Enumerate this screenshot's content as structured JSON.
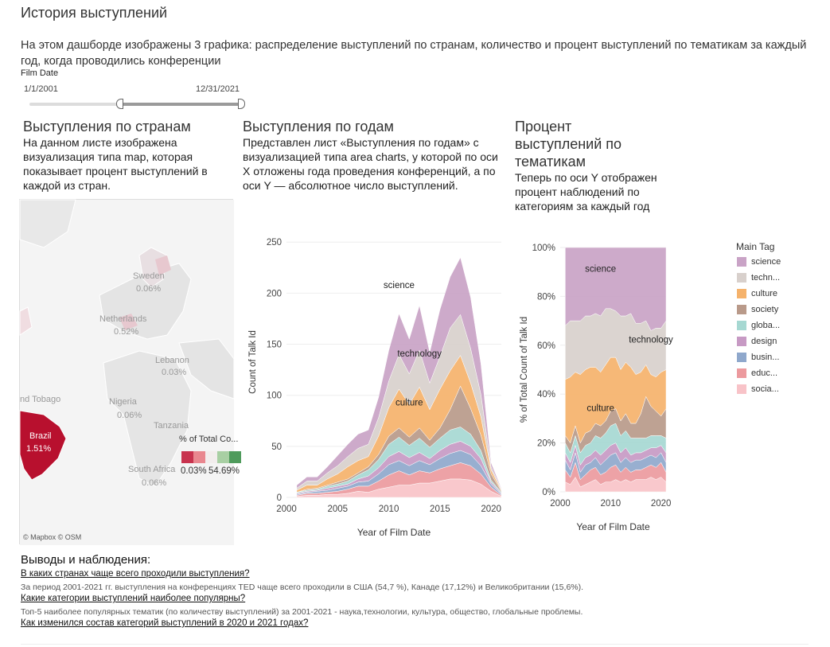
{
  "page": {
    "title": "История выступлений",
    "intro": "На этом дашборде изображены 3 графика: распределение выступлений по странам,  количество и процент выступлений по тематикам за каждый год, когда проводились конференции"
  },
  "filter": {
    "label": "Film Date",
    "min_label": "1/1/2001",
    "max_label": "12/31/2021"
  },
  "map_panel": {
    "title": "Выступления по странам",
    "description": "На данном листе изображена визуализация типа map, которая показывает процент выступлений в каждой из стран.",
    "labels": [
      {
        "name": "Sweden",
        "value": "0.06%"
      },
      {
        "name": "Netherlands",
        "value": "0.52%"
      },
      {
        "name": "Lebanon",
        "value": "0.03%"
      },
      {
        "name": "nd Tobago",
        "value": ""
      },
      {
        "name": "Nigeria",
        "value": "0.06%"
      },
      {
        "name": "Tanzania",
        "value": ""
      },
      {
        "name": "Brazil",
        "value": "1.51%"
      },
      {
        "name": "South Africa",
        "value": "0.06%"
      }
    ],
    "legend_title": "% of Total Co...",
    "legend_min": "0.03%",
    "legend_max": "54.69%",
    "legend_colors": [
      "#c8334e",
      "#e9878f",
      "#f2eded",
      "#a8cfa3",
      "#4f9b5c"
    ],
    "attribution": "© Mapbox  © OSM"
  },
  "years_panel": {
    "title": "Выступления по годам",
    "description": "Представлен лист «Выступления по годам» с визуализацией типа area charts, у которой по оси X отложены года проведения конференций, а по оси Y — абсолютное число выступлений."
  },
  "percent_panel": {
    "title": "Процент выступлений по тематикам",
    "description": "Теперь по оси Y отображен процент наблюдений по категориям за каждый год"
  },
  "legend": {
    "title": "Main Tag",
    "items": [
      {
        "label": "science",
        "color": "#c9a3c6"
      },
      {
        "label": "techn...",
        "color": "#d8d0cc"
      },
      {
        "label": "culture",
        "color": "#f5b26b"
      },
      {
        "label": "society",
        "color": "#b99a8a"
      },
      {
        "label": "globa...",
        "color": "#a6d8d2"
      },
      {
        "label": "design",
        "color": "#c79ac4"
      },
      {
        "label": "busin...",
        "color": "#8fa8cc"
      },
      {
        "label": "educ...",
        "color": "#ec9a9e"
      },
      {
        "label": "socia...",
        "color": "#f8c3c8"
      }
    ]
  },
  "chart_data": [
    {
      "type": "area",
      "stacked": true,
      "xlabel": "Year of Film Date",
      "ylabel": "Count of Talk Id",
      "xlim": [
        2000,
        2021
      ],
      "ylim": [
        0,
        265
      ],
      "xticks": [
        2000,
        2005,
        2010,
        2015,
        2020
      ],
      "yticks": [
        0,
        50,
        100,
        150,
        200,
        250
      ],
      "x": [
        2001,
        2002,
        2003,
        2004,
        2005,
        2006,
        2007,
        2008,
        2009,
        2010,
        2011,
        2012,
        2013,
        2014,
        2015,
        2016,
        2017,
        2018,
        2019,
        2020,
        2021
      ],
      "series": [
        {
          "name": "socia...",
          "values": [
            1,
            2,
            2,
            3,
            3,
            4,
            6,
            5,
            8,
            10,
            12,
            12,
            14,
            14,
            16,
            18,
            18,
            17,
            13,
            6,
            1
          ]
        },
        {
          "name": "educ...",
          "values": [
            1,
            2,
            2,
            2,
            3,
            4,
            5,
            6,
            8,
            12,
            14,
            10,
            12,
            10,
            12,
            13,
            16,
            14,
            10,
            4,
            1
          ]
        },
        {
          "name": "busin...",
          "values": [
            1,
            1,
            2,
            2,
            3,
            3,
            4,
            5,
            7,
            10,
            10,
            9,
            10,
            8,
            10,
            12,
            12,
            11,
            8,
            3,
            1
          ]
        },
        {
          "name": "design",
          "values": [
            1,
            1,
            1,
            2,
            2,
            2,
            3,
            5,
            6,
            8,
            9,
            8,
            8,
            6,
            8,
            9,
            9,
            8,
            7,
            2,
            1
          ]
        },
        {
          "name": "globa...",
          "values": [
            1,
            1,
            1,
            2,
            2,
            3,
            4,
            6,
            8,
            12,
            14,
            12,
            14,
            11,
            12,
            14,
            14,
            12,
            8,
            2,
            1
          ]
        },
        {
          "name": "society",
          "values": [
            0,
            1,
            1,
            1,
            2,
            2,
            2,
            3,
            5,
            8,
            9,
            8,
            10,
            7,
            10,
            20,
            40,
            25,
            15,
            6,
            1
          ]
        },
        {
          "name": "culture",
          "values": [
            2,
            4,
            3,
            6,
            8,
            12,
            12,
            10,
            18,
            28,
            38,
            32,
            40,
            30,
            38,
            38,
            30,
            25,
            18,
            4,
            1
          ]
        },
        {
          "name": "techn...",
          "values": [
            2,
            4,
            4,
            6,
            8,
            10,
            12,
            12,
            18,
            26,
            34,
            30,
            36,
            26,
            32,
            42,
            40,
            34,
            22,
            3,
            1
          ]
        },
        {
          "name": "science",
          "values": [
            3,
            4,
            4,
            6,
            10,
            12,
            14,
            14,
            20,
            30,
            40,
            34,
            44,
            30,
            46,
            50,
            56,
            50,
            30,
            4,
            1
          ]
        }
      ],
      "annotations": [
        {
          "text": "science",
          "x": 2011,
          "y": 205
        },
        {
          "text": "technology",
          "x": 2013,
          "y": 138
        },
        {
          "text": "culture",
          "x": 2012,
          "y": 90
        }
      ]
    },
    {
      "type": "area",
      "stacked": true,
      "normalized": true,
      "xlabel": "Year of Film Date",
      "ylabel": "% of Total Count of Talk Id",
      "xlim": [
        2000,
        2021
      ],
      "ylim": [
        0,
        100
      ],
      "xticks": [
        2000,
        2010,
        2020
      ],
      "yticks": [
        "0%",
        "20%",
        "40%",
        "60%",
        "80%",
        "100%"
      ],
      "x": [
        2001,
        2002,
        2003,
        2004,
        2005,
        2006,
        2007,
        2008,
        2009,
        2010,
        2011,
        2012,
        2013,
        2014,
        2015,
        2016,
        2017,
        2018,
        2019,
        2020,
        2021
      ],
      "series": [
        {
          "name": "socia...",
          "values": [
            4,
            3,
            6,
            2,
            3,
            4,
            5,
            3,
            4,
            4,
            5,
            4,
            5,
            4,
            5,
            5,
            5,
            6,
            5,
            6,
            4
          ]
        },
        {
          "name": "educ...",
          "values": [
            5,
            3,
            6,
            3,
            4,
            5,
            5,
            4,
            4,
            6,
            6,
            4,
            5,
            4,
            4,
            4,
            5,
            5,
            5,
            6,
            4
          ]
        },
        {
          "name": "busin...",
          "values": [
            4,
            3,
            4,
            3,
            4,
            3,
            4,
            4,
            5,
            5,
            5,
            4,
            4,
            4,
            4,
            4,
            4,
            4,
            4,
            4,
            4
          ]
        },
        {
          "name": "design",
          "values": [
            3,
            3,
            3,
            3,
            3,
            3,
            3,
            4,
            4,
            4,
            4,
            4,
            4,
            3,
            3,
            3,
            3,
            3,
            4,
            3,
            4
          ]
        },
        {
          "name": "globa...",
          "values": [
            4,
            4,
            4,
            5,
            5,
            5,
            6,
            7,
            7,
            8,
            8,
            7,
            7,
            7,
            6,
            6,
            5,
            5,
            5,
            4,
            6
          ]
        },
        {
          "name": "society",
          "values": [
            3,
            4,
            4,
            4,
            5,
            5,
            5,
            5,
            5,
            6,
            6,
            6,
            7,
            6,
            6,
            10,
            17,
            12,
            10,
            8,
            12
          ]
        },
        {
          "name": "culture",
          "values": [
            23,
            27,
            22,
            28,
            26,
            26,
            23,
            22,
            23,
            22,
            21,
            21,
            21,
            23,
            20,
            17,
            13,
            13,
            14,
            18,
            16
          ]
        },
        {
          "name": "techn...",
          "values": [
            22,
            23,
            21,
            22,
            22,
            21,
            22,
            23,
            23,
            20,
            19,
            22,
            19,
            22,
            21,
            20,
            18,
            18,
            20,
            18,
            20
          ]
        },
        {
          "name": "science",
          "values": [
            32,
            30,
            30,
            30,
            28,
            28,
            27,
            28,
            25,
            25,
            26,
            28,
            28,
            27,
            31,
            31,
            30,
            34,
            33,
            33,
            30
          ]
        }
      ],
      "annotations": [
        {
          "text": "science",
          "x": 2008,
          "y": 90
        },
        {
          "text": "technology",
          "x": 2018,
          "y": 61
        },
        {
          "text": "culture",
          "x": 2008,
          "y": 33
        }
      ]
    }
  ],
  "conclusions": {
    "title": "Выводы и наблюдения:",
    "items": [
      {
        "question": "В каких странах чаще всего проходили выступления?",
        "answer": "За период 2001-2021 гг. выступления на конференциях TED чаще всего проходили в США (54,7 %), Канаде (17,12%) и Великобритании (15,6%)."
      },
      {
        "question": "Какие категории выступлений наиболее популярны?",
        "answer": "Топ-5 наиболее популярных тематик (по количеству выступлений) за 2001-2021  - наука,технологии, культура, общество, глобальные проблемы."
      },
      {
        "question": "Как изменился состав категорий выступлений в 2020 и 2021 годах?",
        "answer": ""
      }
    ]
  }
}
